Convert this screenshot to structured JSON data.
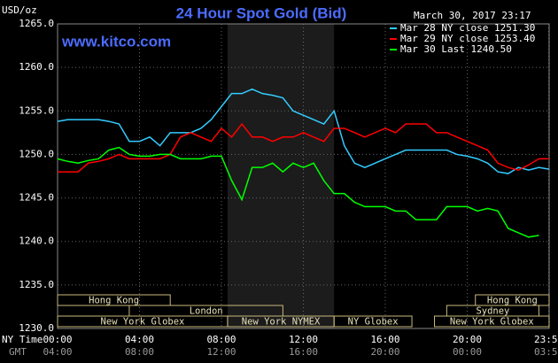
{
  "chart_data": {
    "type": "line",
    "title": "24 Hour Spot Gold (Bid)",
    "unit_label": "USD/oz",
    "timestamp": "March 30, 2017 23:17",
    "source": "www.kitco.com",
    "x_axis_label": "NY Time",
    "x2_axis_label": "GMT",
    "x": [
      0,
      0.5,
      1,
      1.5,
      2,
      2.5,
      3,
      3.5,
      4,
      4.5,
      5,
      5.5,
      6,
      6.5,
      7,
      7.5,
      8,
      8.5,
      9,
      9.5,
      10,
      10.5,
      11,
      11.5,
      12,
      12.5,
      13,
      13.5,
      14,
      14.5,
      15,
      15.5,
      16,
      16.5,
      17,
      17.5,
      18,
      18.5,
      19,
      19.5,
      20,
      20.5,
      21,
      21.5,
      22,
      22.5,
      23,
      23.5,
      24
    ],
    "series": [
      {
        "name": "Mar 28 NY close 1251.30",
        "color": "#33ccff",
        "values": [
          1253.8,
          1254,
          1254,
          1254,
          1254,
          1253.8,
          1253.5,
          1251.5,
          1251.5,
          1252,
          1251,
          1252.5,
          1252.5,
          1252.5,
          1253,
          1254,
          1255.5,
          1257,
          1257,
          1257.5,
          1257,
          1256.8,
          1256.5,
          1255,
          1254.5,
          1254,
          1253.5,
          1255,
          1251,
          1249,
          1248.5,
          1249,
          1249.5,
          1250,
          1250.5,
          1250.5,
          1250.5,
          1250.5,
          1250.5,
          1250,
          1249.8,
          1249.5,
          1249,
          1248,
          1247.8,
          1248.5,
          1248.2,
          1248.5,
          1248.3
        ]
      },
      {
        "name": "Mar 29 NY close 1253.40",
        "color": "#ff0000",
        "values": [
          1248,
          1248,
          1248,
          1249,
          1249.2,
          1249.5,
          1250,
          1249.5,
          1249.5,
          1249.5,
          1249.5,
          1250,
          1252,
          1252.5,
          1252,
          1251.5,
          1253,
          1252,
          1253.5,
          1252,
          1252,
          1251.5,
          1252,
          1252,
          1252.5,
          1252,
          1251.5,
          1253,
          1253,
          1252.5,
          1252,
          1252.5,
          1253,
          1252.5,
          1253.5,
          1253.5,
          1253.5,
          1252.5,
          1252.5,
          1252,
          1251.5,
          1251,
          1250.5,
          1249,
          1248.5,
          1248.2,
          1248.8,
          1249.5,
          1249.5
        ]
      },
      {
        "name": "Mar 30 Last 1240.50",
        "color": "#00ff00",
        "values": [
          1249.5,
          1249.2,
          1249,
          1249.3,
          1249.5,
          1250.5,
          1250.8,
          1250,
          1249.8,
          1249.8,
          1250,
          1250,
          1249.5,
          1249.5,
          1249.5,
          1249.8,
          1249.8,
          1247,
          1244.8,
          1248.5,
          1248.5,
          1249,
          1248,
          1249,
          1248.5,
          1249,
          1247,
          1245.5,
          1245.5,
          1244.5,
          1244,
          1244,
          1244,
          1243.5,
          1243.5,
          1242.5,
          1242.5,
          1242.5,
          1244,
          1244,
          1244,
          1243.5,
          1243.8,
          1243.5,
          1241.5,
          1241,
          1240.5,
          1240.7,
          null
        ]
      }
    ],
    "xlim": [
      0,
      24
    ],
    "ylim": [
      1230,
      1265
    ],
    "yticks": [
      {
        "value": 1230,
        "label": "1230.0"
      },
      {
        "value": 1235,
        "label": "1235.0"
      },
      {
        "value": 1240,
        "label": "1240.0"
      },
      {
        "value": 1245,
        "label": "1245.0"
      },
      {
        "value": 1250,
        "label": "1250.0"
      },
      {
        "value": 1255,
        "label": "1255.0"
      },
      {
        "value": 1260,
        "label": "1260.0"
      },
      {
        "value": 1265,
        "label": "1265.0"
      }
    ],
    "xticks": [
      {
        "value": 0,
        "label": "00:00"
      },
      {
        "value": 4,
        "label": "04:00"
      },
      {
        "value": 8,
        "label": "08:00"
      },
      {
        "value": 12,
        "label": "12:00"
      },
      {
        "value": 16,
        "label": "16:00"
      },
      {
        "value": 20,
        "label": "20:00"
      },
      {
        "value": 23.98,
        "label": "23:59"
      }
    ],
    "x2ticks": [
      {
        "value": 0,
        "label": "04:00"
      },
      {
        "value": 4,
        "label": "08:00"
      },
      {
        "value": 8,
        "label": "12:00"
      },
      {
        "value": 12,
        "label": "16:00"
      },
      {
        "value": 16,
        "label": "20:00"
      },
      {
        "value": 20,
        "label": "00:00"
      },
      {
        "value": 23.98,
        "label": "03:59"
      }
    ],
    "shaded": [
      8.3,
      13.5
    ],
    "grid": true,
    "sessions": [
      [
        {
          "label": "Hong Kong",
          "start": 0,
          "end": 5.5
        },
        {
          "label": "Hong Kong",
          "start": 20.4,
          "end": 24
        }
      ],
      [
        {
          "label": "London",
          "start": 3.5,
          "end": 11
        },
        {
          "label": "Sydney",
          "start": 19,
          "end": 23.5
        }
      ],
      [
        {
          "label": "New York Globex",
          "start": 0,
          "end": 8.3
        },
        {
          "label": "New York NYMEX",
          "start": 8.3,
          "end": 13.5
        },
        {
          "label": "NY Globex",
          "start": 13.5,
          "end": 17.3
        },
        {
          "label": "New York Globex",
          "start": 18.4,
          "end": 24
        }
      ]
    ]
  }
}
